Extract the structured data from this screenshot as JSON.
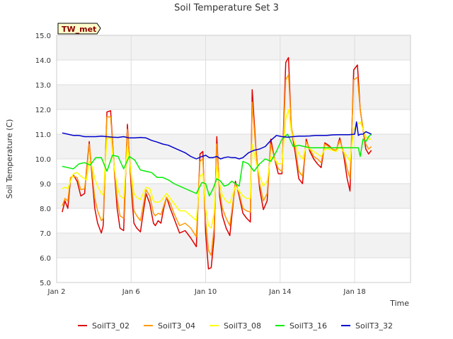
{
  "chart_data": {
    "type": "line",
    "title": "Soil Temperature Set 3",
    "xlabel": "Time",
    "ylabel": "Soil Temperature (C)",
    "badge": "TW_met",
    "xlim": [
      0,
      19
    ],
    "ylim": [
      5.0,
      15.0
    ],
    "yticks": [
      "5.0",
      "6.0",
      "7.0",
      "8.0",
      "9.0",
      "10.0",
      "11.0",
      "12.0",
      "13.0",
      "14.0",
      "15.0"
    ],
    "xticks": [
      {
        "pos": 0,
        "label": "Jan 2"
      },
      {
        "pos": 4,
        "label": "Jan 6"
      },
      {
        "pos": 8,
        "label": "Jan 10"
      },
      {
        "pos": 12,
        "label": "Jan 14"
      },
      {
        "pos": 16,
        "label": "Jan 18"
      }
    ],
    "grid": true,
    "legend_position": "bottom",
    "series": [
      {
        "name": "SoilT3_02",
        "color": "#dd0000",
        "x": [
          0.3,
          0.45,
          0.6,
          0.75,
          0.9,
          1.1,
          1.3,
          1.5,
          1.6,
          1.75,
          1.9,
          2.05,
          2.2,
          2.4,
          2.5,
          2.7,
          2.9,
          3.1,
          3.25,
          3.4,
          3.6,
          3.8,
          4.0,
          4.15,
          4.3,
          4.5,
          4.8,
          5.0,
          5.2,
          5.3,
          5.45,
          5.6,
          5.75,
          5.9,
          6.1,
          6.3,
          6.6,
          6.9,
          7.2,
          7.5,
          7.7,
          7.85,
          8.0,
          8.15,
          8.3,
          8.45,
          8.6,
          8.75,
          8.9,
          9.1,
          9.3,
          9.6,
          9.8,
          10.0,
          10.2,
          10.4,
          10.5,
          10.7,
          10.9,
          11.1,
          11.3,
          11.5,
          11.7,
          11.9,
          12.1,
          12.3,
          12.45,
          12.6,
          12.8,
          13.0,
          13.2,
          13.4,
          13.6,
          13.8,
          14.0,
          14.2,
          14.4,
          14.6,
          14.8,
          15.0,
          15.2,
          15.4,
          15.6,
          15.75,
          15.95,
          16.15,
          16.3,
          16.45,
          16.6,
          16.75,
          16.9
        ],
        "y": [
          7.85,
          8.3,
          8.0,
          9.2,
          9.35,
          9.1,
          8.5,
          8.6,
          9.5,
          10.7,
          9.3,
          8.0,
          7.4,
          7.0,
          7.3,
          11.9,
          11.95,
          9.5,
          8.0,
          7.2,
          7.1,
          11.4,
          8.9,
          7.4,
          7.2,
          7.05,
          8.6,
          8.2,
          7.4,
          7.3,
          7.5,
          7.4,
          8.0,
          8.45,
          8.0,
          7.6,
          7.0,
          7.1,
          6.8,
          6.45,
          10.2,
          10.3,
          7.0,
          5.55,
          5.6,
          6.8,
          10.9,
          8.5,
          7.7,
          7.2,
          6.9,
          9.1,
          8.5,
          7.8,
          7.6,
          7.45,
          12.8,
          10.4,
          8.8,
          7.95,
          8.3,
          10.8,
          10.0,
          9.4,
          9.4,
          13.9,
          14.1,
          11.2,
          10.3,
          9.2,
          9.0,
          10.8,
          10.3,
          10.0,
          9.8,
          9.65,
          10.65,
          10.55,
          10.4,
          10.3,
          10.85,
          10.2,
          9.2,
          8.7,
          13.6,
          13.8,
          12.0,
          11.2,
          10.4,
          10.2,
          10.35
        ]
      },
      {
        "name": "SoilT3_04",
        "color": "#ff9900",
        "x": [
          0.3,
          0.45,
          0.6,
          0.75,
          0.9,
          1.1,
          1.3,
          1.5,
          1.6,
          1.75,
          1.9,
          2.05,
          2.2,
          2.4,
          2.5,
          2.7,
          2.9,
          3.1,
          3.25,
          3.4,
          3.6,
          3.8,
          4.0,
          4.15,
          4.3,
          4.5,
          4.8,
          5.0,
          5.2,
          5.3,
          5.45,
          5.6,
          5.75,
          5.9,
          6.1,
          6.3,
          6.6,
          6.9,
          7.2,
          7.5,
          7.7,
          7.85,
          8.0,
          8.15,
          8.3,
          8.45,
          8.6,
          8.75,
          8.9,
          9.1,
          9.3,
          9.6,
          9.8,
          10.0,
          10.2,
          10.4,
          10.5,
          10.7,
          10.9,
          11.1,
          11.3,
          11.5,
          11.7,
          11.9,
          12.1,
          12.3,
          12.45,
          12.6,
          12.8,
          13.0,
          13.2,
          13.4,
          13.6,
          13.8,
          14.0,
          14.2,
          14.4,
          14.6,
          14.8,
          15.0,
          15.2,
          15.4,
          15.6,
          15.75,
          15.95,
          16.15,
          16.3,
          16.45,
          16.6,
          16.75,
          16.9
        ],
        "y": [
          8.1,
          8.4,
          8.3,
          9.25,
          9.3,
          9.25,
          8.75,
          8.8,
          9.4,
          10.6,
          9.5,
          8.4,
          7.9,
          7.5,
          7.6,
          11.7,
          11.7,
          9.6,
          8.4,
          7.7,
          7.6,
          11.2,
          9.2,
          7.9,
          7.7,
          7.5,
          8.75,
          8.5,
          7.8,
          7.7,
          7.8,
          7.75,
          8.1,
          8.45,
          8.2,
          7.8,
          7.3,
          7.4,
          7.2,
          6.85,
          9.9,
          10.0,
          7.5,
          6.3,
          6.1,
          7.2,
          10.6,
          8.7,
          8.0,
          7.6,
          7.3,
          9.0,
          8.6,
          8.0,
          7.9,
          7.85,
          12.3,
          10.3,
          9.0,
          8.3,
          8.6,
          10.6,
          10.0,
          9.6,
          9.5,
          13.2,
          13.4,
          11.3,
          10.5,
          9.5,
          9.3,
          10.7,
          10.4,
          10.1,
          10.0,
          9.85,
          10.6,
          10.5,
          10.4,
          10.35,
          10.75,
          10.3,
          9.6,
          9.2,
          13.2,
          13.3,
          12.0,
          11.2,
          10.6,
          10.4,
          10.5
        ]
      },
      {
        "name": "SoilT3_08",
        "color": "#ffff00",
        "x": [
          0.3,
          0.45,
          0.6,
          0.75,
          0.9,
          1.1,
          1.3,
          1.5,
          1.6,
          1.75,
          1.9,
          2.05,
          2.2,
          2.4,
          2.5,
          2.7,
          2.9,
          3.1,
          3.25,
          3.4,
          3.6,
          3.8,
          4.0,
          4.15,
          4.3,
          4.5,
          4.8,
          5.0,
          5.2,
          5.3,
          5.45,
          5.6,
          5.75,
          5.9,
          6.1,
          6.3,
          6.6,
          6.9,
          7.2,
          7.5,
          7.7,
          7.85,
          8.0,
          8.15,
          8.3,
          8.45,
          8.6,
          8.75,
          8.9,
          9.1,
          9.3,
          9.6,
          9.8,
          10.0,
          10.2,
          10.4,
          10.5,
          10.7,
          10.9,
          11.1,
          11.3,
          11.5,
          11.7,
          11.9,
          12.1,
          12.3,
          12.45,
          12.6,
          12.8,
          13.0,
          13.2,
          13.4,
          13.6,
          13.8,
          14.0,
          14.2,
          14.4,
          14.6,
          14.8,
          15.0,
          15.2,
          15.4,
          15.6,
          15.75,
          15.95,
          16.15,
          16.3,
          16.45,
          16.6,
          16.75,
          16.9
        ],
        "y": [
          8.8,
          8.85,
          8.8,
          9.1,
          9.4,
          9.45,
          9.3,
          9.2,
          9.15,
          9.9,
          9.7,
          9.2,
          8.9,
          8.6,
          8.55,
          10.8,
          10.9,
          9.6,
          8.9,
          8.5,
          8.4,
          10.5,
          9.4,
          8.6,
          8.45,
          8.35,
          8.85,
          8.8,
          8.3,
          8.25,
          8.25,
          8.3,
          8.45,
          8.6,
          8.4,
          8.2,
          7.9,
          7.9,
          7.7,
          7.5,
          9.3,
          9.4,
          8.0,
          7.3,
          7.2,
          7.8,
          9.7,
          9.0,
          8.5,
          8.3,
          8.2,
          8.9,
          8.7,
          8.5,
          8.4,
          8.4,
          10.6,
          9.9,
          9.3,
          8.9,
          9.1,
          10.1,
          10.0,
          9.8,
          9.8,
          11.6,
          12.0,
          11.1,
          10.6,
          10.2,
          10.0,
          10.5,
          10.4,
          10.3,
          10.2,
          10.1,
          10.4,
          10.4,
          10.35,
          10.3,
          10.5,
          10.3,
          10.1,
          9.9,
          11.2,
          11.4,
          11.5,
          11.2,
          10.9,
          10.8,
          10.8
        ]
      },
      {
        "name": "SoilT3_16",
        "color": "#00ee00",
        "x": [
          0.3,
          0.6,
          0.9,
          1.2,
          1.5,
          1.8,
          2.1,
          2.4,
          2.7,
          3.0,
          3.3,
          3.6,
          3.9,
          4.2,
          4.5,
          4.8,
          5.1,
          5.4,
          5.7,
          6.0,
          6.3,
          6.6,
          6.9,
          7.2,
          7.5,
          7.8,
          8.0,
          8.2,
          8.4,
          8.6,
          8.8,
          9.0,
          9.2,
          9.4,
          9.6,
          9.8,
          10.0,
          10.3,
          10.6,
          10.9,
          11.2,
          11.5,
          11.8,
          12.1,
          12.4,
          12.7,
          13.0,
          13.3,
          13.6,
          13.9,
          14.2,
          14.5,
          14.8,
          15.1,
          15.4,
          15.7,
          15.9,
          16.0,
          16.1,
          16.2,
          16.3,
          16.45,
          16.6,
          16.75,
          16.9
        ],
        "y": [
          9.7,
          9.65,
          9.6,
          9.8,
          9.85,
          9.75,
          10.05,
          10.05,
          9.5,
          10.15,
          10.1,
          9.6,
          10.1,
          9.95,
          9.55,
          9.5,
          9.45,
          9.25,
          9.25,
          9.15,
          9.0,
          8.9,
          8.8,
          8.7,
          8.6,
          9.05,
          9.0,
          8.5,
          8.8,
          9.2,
          9.1,
          8.9,
          8.95,
          9.1,
          9.0,
          8.9,
          9.9,
          9.8,
          9.5,
          9.8,
          10.0,
          9.9,
          10.3,
          10.8,
          11.0,
          10.5,
          10.55,
          10.5,
          10.45,
          10.45,
          10.45,
          10.45,
          10.45,
          10.45,
          10.45,
          10.45,
          10.45,
          10.45,
          10.45,
          10.45,
          10.1,
          10.8,
          10.7,
          10.9,
          11.0
        ]
      },
      {
        "name": "SoilT3_32",
        "color": "#0000cc",
        "x": [
          0.3,
          0.6,
          0.9,
          1.2,
          1.5,
          1.8,
          2.1,
          2.4,
          2.7,
          3.0,
          3.3,
          3.6,
          3.9,
          4.2,
          4.5,
          4.8,
          5.1,
          5.4,
          5.7,
          6.0,
          6.3,
          6.6,
          6.9,
          7.2,
          7.5,
          7.8,
          7.9,
          8.0,
          8.2,
          8.4,
          8.6,
          8.8,
          9.0,
          9.2,
          9.4,
          9.6,
          9.8,
          10.0,
          10.3,
          10.6,
          10.9,
          11.2,
          11.5,
          11.8,
          12.1,
          12.4,
          12.7,
          13.0,
          13.3,
          13.6,
          13.9,
          14.2,
          14.5,
          14.8,
          15.1,
          15.4,
          15.7,
          16.0,
          16.1,
          16.2,
          16.3,
          16.45,
          16.6,
          16.75,
          16.9
        ],
        "y": [
          11.05,
          11.0,
          10.95,
          10.95,
          10.9,
          10.9,
          10.9,
          10.92,
          10.9,
          10.88,
          10.87,
          10.9,
          10.85,
          10.85,
          10.87,
          10.85,
          10.75,
          10.68,
          10.6,
          10.55,
          10.45,
          10.35,
          10.25,
          10.1,
          10.0,
          10.1,
          10.12,
          10.15,
          10.05,
          10.05,
          10.1,
          10.0,
          10.05,
          10.08,
          10.05,
          10.05,
          10.0,
          10.05,
          10.25,
          10.35,
          10.4,
          10.5,
          10.75,
          10.95,
          10.9,
          10.88,
          10.9,
          10.92,
          10.92,
          10.93,
          10.95,
          10.95,
          10.95,
          10.97,
          10.98,
          10.98,
          10.98,
          11.0,
          11.5,
          10.95,
          11.0,
          11.0,
          11.1,
          11.05,
          11.0
        ]
      }
    ]
  }
}
